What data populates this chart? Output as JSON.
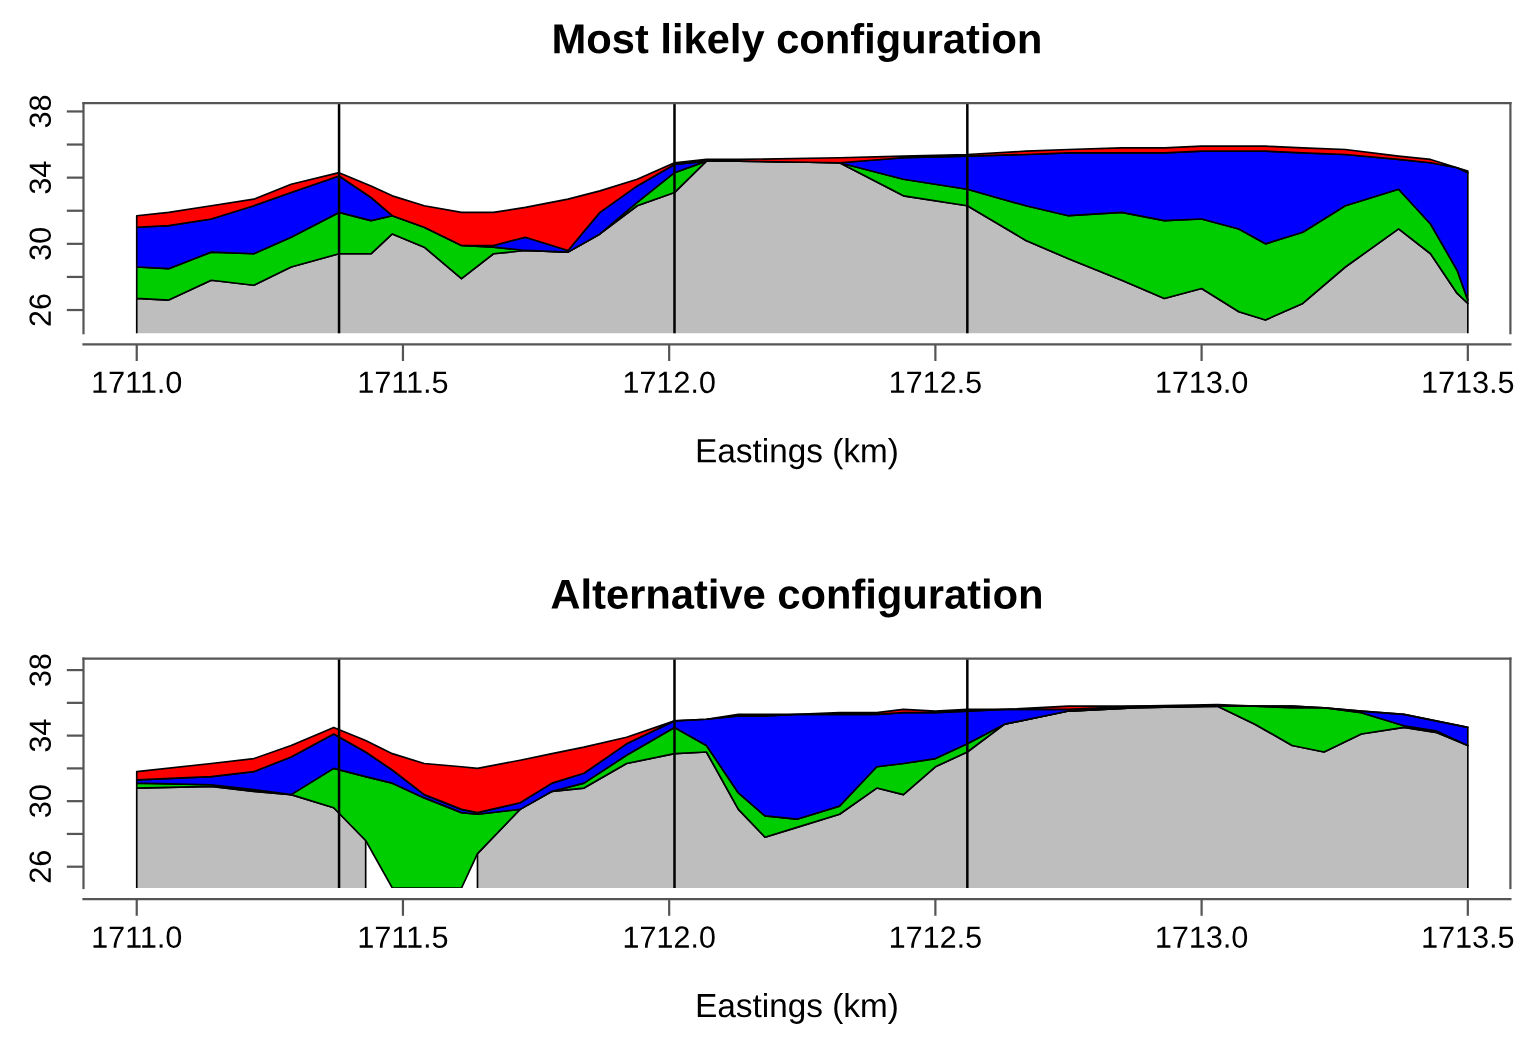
{
  "chart_data": [
    {
      "type": "area",
      "title": "Most likely configuration",
      "xlabel": "Eastings (km)",
      "x": [
        1711.0,
        1711.06,
        1711.14,
        1711.22,
        1711.29,
        1711.38,
        1711.44,
        1711.48,
        1711.54,
        1711.61,
        1711.67,
        1711.73,
        1711.81,
        1711.87,
        1711.94,
        1712.01,
        1712.07,
        1712.13,
        1712.32,
        1712.44,
        1712.56,
        1712.67,
        1712.75,
        1712.85,
        1712.93,
        1713.0,
        1713.07,
        1713.12,
        1713.19,
        1713.27,
        1713.37,
        1713.43,
        1713.48,
        1713.5
      ],
      "series": [
        {
          "color": "#bebebe",
          "values": [
            26.7,
            26.6,
            27.8,
            27.5,
            28.6,
            29.4,
            29.4,
            30.6,
            29.8,
            27.9,
            29.4,
            29.6,
            29.5,
            30.6,
            32.3,
            33.1,
            35.0,
            35.0,
            34.9,
            32.9,
            32.3,
            30.2,
            29.1,
            27.8,
            26.7,
            27.3,
            25.9,
            25.4,
            26.4,
            28.6,
            30.9,
            29.4,
            27.0,
            26.4
          ]
        },
        {
          "color": "#00cd00",
          "values": [
            28.6,
            28.5,
            29.5,
            29.4,
            30.4,
            31.9,
            31.4,
            31.7,
            31.0,
            29.9,
            29.8,
            29.6,
            29.5,
            30.6,
            32.5,
            34.3,
            35.0,
            35.0,
            34.9,
            33.9,
            33.3,
            32.3,
            31.7,
            31.9,
            31.4,
            31.5,
            30.9,
            30.0,
            30.7,
            32.3,
            33.3,
            31.2,
            28.4,
            26.6
          ]
        },
        {
          "color": "#0000ff",
          "values": [
            31.0,
            31.1,
            31.5,
            32.3,
            33.1,
            34.1,
            32.8,
            31.7,
            31.0,
            29.9,
            29.9,
            30.4,
            29.6,
            31.9,
            33.5,
            34.8,
            35.0,
            35.0,
            34.9,
            35.2,
            35.3,
            35.4,
            35.5,
            35.5,
            35.5,
            35.6,
            35.6,
            35.6,
            35.5,
            35.4,
            35.1,
            34.9,
            34.6,
            34.3
          ]
        },
        {
          "color": "#ff0000",
          "values": [
            31.7,
            31.9,
            32.3,
            32.7,
            33.6,
            34.3,
            33.5,
            32.9,
            32.3,
            31.9,
            31.9,
            32.2,
            32.7,
            33.2,
            33.9,
            34.9,
            35.1,
            35.1,
            35.2,
            35.3,
            35.4,
            35.6,
            35.7,
            35.8,
            35.8,
            35.9,
            35.9,
            35.9,
            35.8,
            35.7,
            35.3,
            35.1,
            34.6,
            34.4
          ]
        }
      ],
      "xlim": [
        1710.9,
        1713.58
      ],
      "ylim": [
        24.6,
        38.5
      ],
      "xticks": [
        {
          "value": 1711,
          "label": "1711.0"
        },
        1711.5,
        {
          "value": 1712,
          "label": "1712.0"
        },
        1712.5,
        {
          "value": 1713,
          "label": "1713.0"
        },
        1713.5
      ],
      "yticks": [
        26,
        {
          "value": 28,
          "label": null
        },
        30,
        {
          "value": 32,
          "label": null
        },
        34,
        {
          "value": 36,
          "label": null
        },
        38
      ],
      "ref_lines": [
        {
          "axis": "x",
          "value": 1711.38,
          "color": "#000000"
        },
        {
          "axis": "x",
          "value": 1712.01,
          "color": "#000000"
        },
        {
          "axis": "x",
          "value": 1712.56,
          "color": "#000000"
        }
      ]
    },
    {
      "type": "area",
      "title": "Alternative configuration",
      "xlabel": "Eastings (km)",
      "x": [
        1711.0,
        1711.14,
        1711.22,
        1711.29,
        1711.37,
        1711.43,
        1711.48,
        1711.54,
        1711.61,
        1711.64,
        1711.72,
        1711.78,
        1711.84,
        1711.92,
        1712.01,
        1712.07,
        1712.13,
        1712.18,
        1712.24,
        1712.32,
        1712.39,
        1712.44,
        1712.5,
        1712.56,
        1712.63,
        1712.75,
        1712.88,
        1713.03,
        1713.1,
        1713.17,
        1713.23,
        1713.3,
        1713.38,
        1713.44,
        1713.5
      ],
      "series": [
        {
          "color": "#bebebe",
          "values": [
            30.8,
            30.9,
            30.6,
            30.4,
            29.6,
            27.6,
            null,
            null,
            null,
            26.8,
            29.5,
            30.6,
            30.8,
            32.3,
            32.9,
            33.0,
            29.5,
            27.8,
            28.4,
            29.2,
            30.8,
            30.4,
            32.1,
            33.0,
            34.7,
            35.5,
            35.7,
            35.8,
            34.7,
            33.4,
            33.0,
            34.1,
            34.5,
            34.2,
            33.4
          ]
        },
        {
          "color": "#00cd00",
          "values": [
            31.1,
            31.0,
            30.7,
            30.4,
            32.0,
            31.5,
            31.1,
            30.2,
            29.3,
            29.2,
            29.5,
            30.6,
            31.1,
            32.8,
            34.5,
            33.4,
            30.5,
            29.1,
            28.9,
            29.7,
            32.1,
            32.3,
            32.6,
            33.5,
            34.7,
            35.5,
            35.7,
            35.8,
            35.8,
            35.7,
            35.7,
            35.4,
            34.6,
            34.3,
            33.4
          ]
        },
        {
          "color": "#0000ff",
          "values": [
            31.3,
            31.5,
            31.8,
            32.7,
            34.1,
            33.0,
            31.9,
            30.4,
            29.5,
            29.3,
            29.9,
            31.1,
            31.7,
            33.5,
            34.9,
            35.0,
            35.2,
            35.2,
            35.3,
            35.3,
            35.3,
            35.4,
            35.4,
            35.5,
            35.6,
            35.6,
            35.8,
            35.8,
            35.8,
            35.8,
            35.7,
            35.5,
            35.3,
            34.9,
            34.5
          ]
        },
        {
          "color": "#ff0000",
          "values": [
            31.8,
            32.3,
            32.6,
            33.4,
            34.5,
            33.7,
            32.9,
            32.3,
            32.1,
            32.0,
            32.5,
            32.9,
            33.3,
            33.9,
            34.9,
            35.0,
            35.3,
            35.3,
            35.3,
            35.4,
            35.4,
            35.6,
            35.5,
            35.6,
            35.6,
            35.8,
            35.8,
            35.9,
            35.8,
            35.8,
            35.7,
            35.5,
            35.3,
            34.9,
            34.5
          ]
        }
      ],
      "xlim": [
        1710.9,
        1713.58
      ],
      "ylim": [
        24.7,
        38.7
      ],
      "xticks": [
        {
          "value": 1711,
          "label": "1711.0"
        },
        1711.5,
        {
          "value": 1712,
          "label": "1712.0"
        },
        1712.5,
        {
          "value": 1713,
          "label": "1713.0"
        },
        1713.5
      ],
      "yticks": [
        26,
        {
          "value": 28,
          "label": null
        },
        30,
        {
          "value": 32,
          "label": null
        },
        34,
        {
          "value": 36,
          "label": null
        },
        38
      ],
      "ref_lines": [
        {
          "axis": "x",
          "value": 1711.38,
          "color": "#000000"
        },
        {
          "axis": "x",
          "value": 1712.01,
          "color": "#000000"
        },
        {
          "axis": "x",
          "value": 1712.56,
          "color": "#000000"
        }
      ]
    }
  ]
}
